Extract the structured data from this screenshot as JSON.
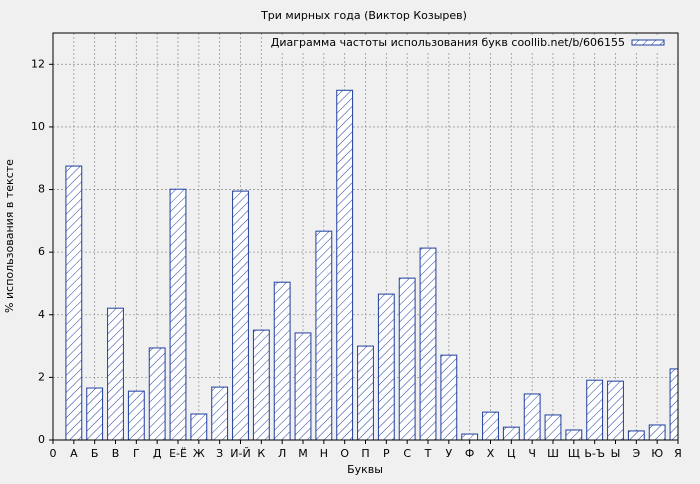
{
  "chart_data": {
    "type": "bar",
    "title": "Три мирных года (Виктор Козырев)",
    "x_label": "Буквы",
    "y_label": "% использования в тексте",
    "categories": [
      "0",
      "А",
      "Б",
      "В",
      "Г",
      "Д",
      "Е-Ё",
      "Ж",
      "З",
      "И-Й",
      "К",
      "Л",
      "М",
      "Н",
      "О",
      "П",
      "Р",
      "С",
      "Т",
      "У",
      "Ф",
      "Х",
      "Ц",
      "Ч",
      "Ш",
      "Щ",
      "Ь-Ъ",
      "Ы",
      "Э",
      "Ю",
      "Я"
    ],
    "series": [
      {
        "name": "Диаграмма частоты использования букв coollib.net/b/606155",
        "color": "#1f3f9f",
        "values": [
          null,
          8.75,
          1.66,
          4.21,
          1.56,
          2.94,
          8.01,
          0.83,
          1.69,
          7.95,
          3.51,
          5.04,
          3.42,
          6.67,
          11.17,
          3.0,
          4.66,
          5.17,
          6.13,
          2.71,
          0.19,
          0.89,
          0.41,
          1.47,
          0.8,
          0.32,
          1.91,
          1.88,
          0.29,
          0.48,
          2.27
        ]
      }
    ],
    "ylim": [
      0,
      13
    ],
    "yticks": [
      0,
      2,
      4,
      6,
      8,
      10,
      12
    ],
    "grid": true,
    "legend": "upper right"
  }
}
